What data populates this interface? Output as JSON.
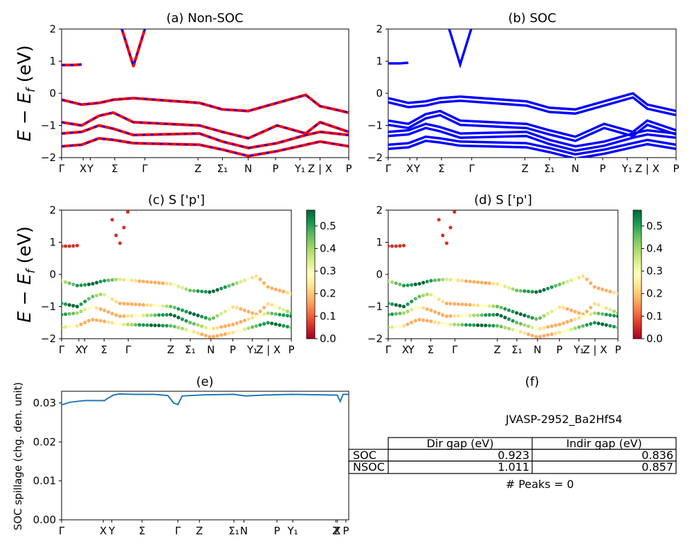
{
  "panels": {
    "a": {
      "title": "(a) Non-SOC"
    },
    "b": {
      "title": "(b) SOC"
    },
    "c": {
      "title": "(c)  S ['p']"
    },
    "d": {
      "title": "(d) S ['p']"
    },
    "e": {
      "title": "(e)"
    },
    "f": {
      "title": "(f)"
    }
  },
  "band_ylabel": "E − E_f (eV)",
  "band_yticks": [
    "2",
    "1",
    "0",
    "−1",
    "−2"
  ],
  "kpath_ticks": [
    "Γ",
    "X",
    "Y",
    "Σ",
    "Γ",
    "Z",
    "Σ₁",
    "N",
    "P",
    "Y₁",
    "Z | X",
    "P"
  ],
  "colorbar": {
    "ticks": [
      "0.5",
      "0.4",
      "0.3",
      "0.2",
      "0.1",
      "0.0"
    ],
    "min": 0.0,
    "max": 0.57
  },
  "colors": {
    "nsoc_red": "#ff0000",
    "nsoc_blue": "#0000ff",
    "soc_blue": "#0000ff",
    "spillage": "#1f77b4"
  },
  "chart_data": [
    {
      "type": "line",
      "title": "(a) Non-SOC",
      "ylabel": "E − E_f (eV)",
      "ylim": [
        -2,
        2
      ],
      "xticks": [
        "Γ",
        "X",
        "Y",
        "Σ",
        "Γ",
        "Z",
        "Σ₁",
        "N",
        "P",
        "Y₁",
        "Z | X",
        "P"
      ],
      "series": [
        {
          "x": [
            0,
            0.07,
            0.13,
            0.18,
            0.25,
            0.48,
            0.56,
            0.65,
            0.75,
            0.85,
            0.9,
            1.0
          ],
          "values": [
            -0.2,
            -0.35,
            -0.3,
            -0.2,
            -0.15,
            -0.3,
            -0.5,
            -0.55,
            -0.3,
            -0.05,
            -0.4,
            -0.6
          ]
        },
        {
          "x": [
            0,
            0.07,
            0.13,
            0.18,
            0.25,
            0.48,
            0.56,
            0.65,
            0.75,
            0.85,
            0.9,
            1.0
          ],
          "values": [
            -0.9,
            -1.0,
            -0.7,
            -0.6,
            -0.9,
            -1.0,
            -1.2,
            -1.4,
            -1.0,
            -1.25,
            -0.9,
            -1.2
          ]
        },
        {
          "x": [
            0,
            0.07,
            0.13,
            0.18,
            0.25,
            0.48,
            0.56,
            0.65,
            0.75,
            0.85,
            0.9,
            1.0
          ],
          "values": [
            -1.25,
            -1.2,
            -1.0,
            -1.1,
            -1.3,
            -1.25,
            -1.5,
            -1.7,
            -1.55,
            -1.3,
            -1.2,
            -1.3
          ]
        },
        {
          "x": [
            0,
            0.07,
            0.13,
            0.18,
            0.25,
            0.48,
            0.56,
            0.65,
            0.75,
            0.85,
            0.9,
            1.0
          ],
          "values": [
            -1.65,
            -1.6,
            -1.4,
            -1.45,
            -1.55,
            -1.6,
            -1.75,
            -1.95,
            -1.8,
            -1.6,
            -1.5,
            -1.65
          ]
        },
        {
          "x": [
            0,
            0.04,
            0.07
          ],
          "values": [
            0.88,
            0.88,
            0.9
          ]
        },
        {
          "x": [
            0.21,
            0.25,
            0.29
          ],
          "values": [
            2.0,
            0.85,
            2.0
          ]
        }
      ]
    },
    {
      "type": "line",
      "title": "(b) SOC",
      "ylim": [
        -2,
        2
      ],
      "xticks": [
        "Γ",
        "X",
        "Y",
        "Σ",
        "Γ",
        "Z",
        "Σ₁",
        "N",
        "P",
        "Y₁",
        "Z | X",
        "P"
      ]
    },
    {
      "type": "scatter",
      "title": "(c)  S ['p']",
      "ylabel": "E − E_f (eV)",
      "ylim": [
        -2,
        2
      ],
      "colorbar_range": [
        0.0,
        0.57
      ]
    },
    {
      "type": "scatter",
      "title": "(d) S ['p']",
      "ylim": [
        -2,
        2
      ],
      "colorbar_range": [
        0.0,
        0.57
      ]
    },
    {
      "type": "line",
      "title": "(e)",
      "ylabel": "SOC spillage (chg. den. unit)",
      "ylim": [
        0.0,
        0.033
      ],
      "yticks": [
        "0.03",
        "0.02",
        "0.01",
        "0.00"
      ],
      "xticks": [
        "Γ",
        "X",
        "Y",
        "Σ",
        "Γ",
        "Z",
        "Σ₁",
        "N",
        "P",
        "Y₁",
        "Z",
        "X",
        "P"
      ],
      "x": [
        0,
        0.03,
        0.08,
        0.15,
        0.155,
        0.18,
        0.2,
        0.25,
        0.32,
        0.37,
        0.39,
        0.405,
        0.42,
        0.5,
        0.6,
        0.64,
        0.7,
        0.8,
        0.9,
        0.96,
        0.97,
        0.98,
        1.0
      ],
      "values": [
        0.0295,
        0.0302,
        0.0306,
        0.0306,
        0.0309,
        0.032,
        0.0323,
        0.0322,
        0.0322,
        0.0319,
        0.03,
        0.0296,
        0.0318,
        0.0321,
        0.0322,
        0.0318,
        0.032,
        0.0322,
        0.0321,
        0.032,
        0.0304,
        0.0322,
        0.0322
      ]
    }
  ],
  "table": {
    "caption": "JVASP-2952_Ba2HfS4",
    "headers": [
      "",
      "Dir gap (eV)",
      "Indir gap (eV)"
    ],
    "rows": [
      [
        "SOC",
        "0.923",
        "0.836"
      ],
      [
        "NSOC",
        "1.011",
        "0.857"
      ]
    ],
    "footer": "# Peaks = 0"
  }
}
